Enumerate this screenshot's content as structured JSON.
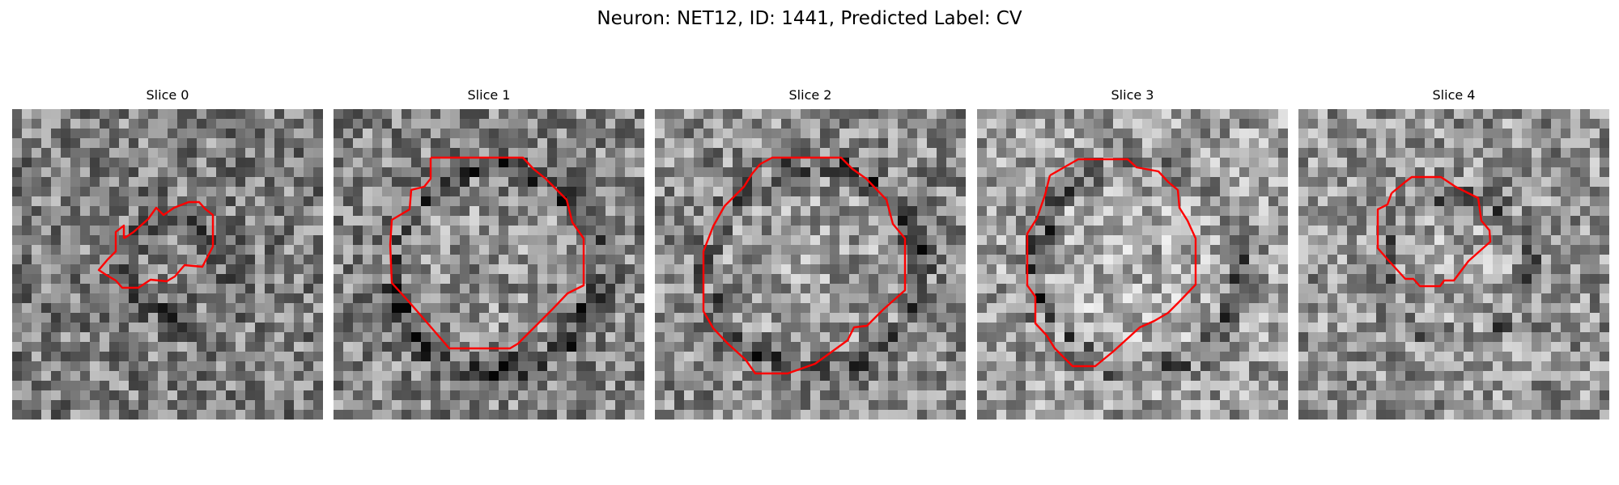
{
  "figure": {
    "title": "Neuron: NET12, ID: 1441, Predicted Label: CV"
  },
  "contour_color": "#ff0000",
  "panels": [
    {
      "title": "Slice 0",
      "seed": 101,
      "base": 0.5,
      "ring_strength": 0.3,
      "icon": "grayscale-noise-image"
    },
    {
      "title": "Slice 1",
      "seed": 202,
      "base": 0.52,
      "ring_strength": 0.4,
      "icon": "grayscale-noise-image"
    },
    {
      "title": "Slice 2",
      "seed": 303,
      "base": 0.55,
      "ring_strength": 0.4,
      "icon": "grayscale-noise-image"
    },
    {
      "title": "Slice 3",
      "seed": 404,
      "base": 0.62,
      "ring_strength": 0.38,
      "icon": "grayscale-noise-image"
    },
    {
      "title": "Slice 4",
      "seed": 505,
      "base": 0.58,
      "ring_strength": 0.25,
      "icon": "grayscale-noise-image"
    }
  ]
}
